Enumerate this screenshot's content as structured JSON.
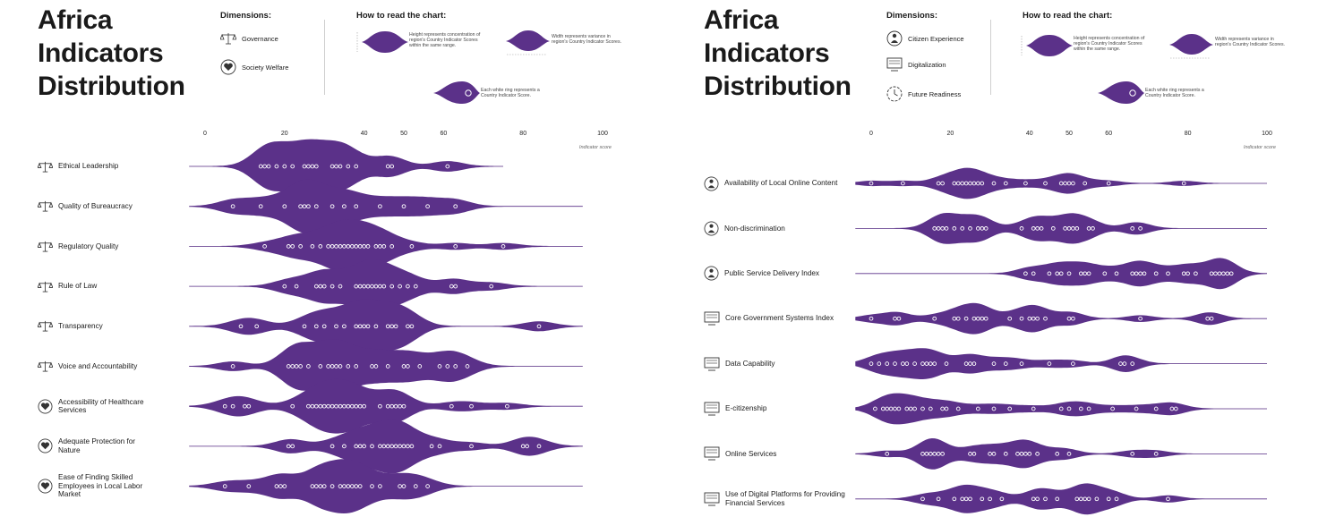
{
  "colors": {
    "violin": "#5b3189",
    "ring": "#ffffff",
    "guide": "#d9d9d9",
    "text": "#1a1a1a"
  },
  "left": {
    "title": "Africa\nIndicators\nDistribution",
    "dimensions_heading": "Dimensions:",
    "dimensions": [
      {
        "label": "Governance",
        "icon": "scales-icon"
      },
      {
        "label": "Society Welfare",
        "icon": "heart-hand-icon"
      }
    ],
    "how_heading": "How to read the chart:",
    "legend": {
      "height_text": "Height represents concentration of region's Country Indicator Scores within the same range.",
      "width_text": "Width represents variance in region's Country Indicator Scores.",
      "ring_text": "Each white ring represents a Country Indicator Score."
    }
  },
  "right": {
    "title": "Africa\nIndicators\nDistribution",
    "dimensions_heading": "Dimensions:",
    "dimensions": [
      {
        "label": "Citizen Experience",
        "icon": "citizen-icon"
      },
      {
        "label": "Digitalization",
        "icon": "monitor-icon"
      },
      {
        "label": "Future Readiness",
        "icon": "clock-icon"
      }
    ],
    "how_heading": "How to read the chart:",
    "legend": {
      "height_text": "Height represents concentration of region's Country Indicator Scores within the same range.",
      "width_text": "Width represents variance in region's Country Indicator Scores.",
      "ring_text": "Each white ring represents a Country Indicator Score."
    }
  },
  "chart_data": [
    {
      "type": "violin",
      "title": "Africa Indicators Distribution",
      "xlabel": "Indicator score",
      "xlim": [
        0,
        100
      ],
      "ticks": [
        0,
        20,
        40,
        50,
        60,
        80,
        100
      ],
      "series": [
        {
          "name": "Ethical Leadership",
          "dimension": "Governance",
          "range": [
            -4,
            75
          ],
          "values": [
            14,
            15,
            16,
            18,
            20,
            22,
            25,
            26,
            27,
            28,
            32,
            33,
            34,
            36,
            38,
            46,
            47,
            61
          ]
        },
        {
          "name": "Quality of Bureaucracy",
          "dimension": "Governance",
          "range": [
            -4,
            95
          ],
          "values": [
            7,
            14,
            20,
            24,
            25,
            26,
            28,
            32,
            35,
            38,
            44,
            50,
            56,
            63
          ]
        },
        {
          "name": "Regulatory Quality",
          "dimension": "Governance",
          "range": [
            -4,
            95
          ],
          "values": [
            15,
            21,
            22,
            24,
            27,
            29,
            31,
            32,
            33,
            34,
            35,
            36,
            37,
            38,
            39,
            40,
            41,
            43,
            44,
            45,
            47,
            52,
            63,
            75
          ]
        },
        {
          "name": "Rule of Law",
          "dimension": "Governance",
          "range": [
            -4,
            95
          ],
          "values": [
            20,
            23,
            28,
            29,
            30,
            32,
            34,
            38,
            39,
            40,
            41,
            42,
            43,
            44,
            45,
            47,
            49,
            51,
            53,
            62,
            63,
            72
          ]
        },
        {
          "name": "Transparency",
          "dimension": "Governance",
          "range": [
            -4,
            95
          ],
          "values": [
            9,
            13,
            25,
            28,
            30,
            33,
            35,
            38,
            39,
            40,
            41,
            43,
            46,
            47,
            48,
            51,
            52,
            84
          ]
        },
        {
          "name": "Voice and Accountability",
          "dimension": "Governance",
          "range": [
            -4,
            95
          ],
          "values": [
            7,
            21,
            22,
            23,
            24,
            26,
            29,
            31,
            32,
            33,
            34,
            36,
            38,
            42,
            43,
            46,
            50,
            51,
            54,
            59,
            61,
            63,
            66
          ]
        },
        {
          "name": "Accessibility of Healthcare Services",
          "dimension": "Society Welfare",
          "range": [
            -4,
            95
          ],
          "values": [
            5,
            7,
            10,
            11,
            22,
            26,
            27,
            28,
            29,
            30,
            31,
            32,
            33,
            34,
            35,
            36,
            37,
            38,
            39,
            40,
            44,
            46,
            47,
            48,
            49,
            50,
            62,
            67,
            76
          ]
        },
        {
          "name": "Adequate Protection for Nature",
          "dimension": "Society Welfare",
          "range": [
            -4,
            95
          ],
          "values": [
            21,
            22,
            32,
            35,
            38,
            39,
            40,
            42,
            44,
            45,
            46,
            47,
            48,
            49,
            50,
            51,
            52,
            57,
            59,
            67,
            80,
            81,
            84
          ]
        },
        {
          "name": "Ease of Finding Skilled Employees in Local Labor Market",
          "dimension": "Society Welfare",
          "range": [
            -4,
            95
          ],
          "values": [
            5,
            11,
            18,
            19,
            20,
            27,
            28,
            29,
            30,
            32,
            34,
            35,
            36,
            37,
            38,
            39,
            42,
            44,
            49,
            50,
            53,
            56
          ]
        }
      ]
    },
    {
      "type": "violin",
      "title": "Africa Indicators Distribution",
      "xlabel": "Indicator score",
      "xlim": [
        0,
        100
      ],
      "ticks": [
        0,
        20,
        40,
        50,
        60,
        80,
        100
      ],
      "series": [
        {
          "name": "Availability of Local Online Content",
          "dimension": "Citizen Experience",
          "range": [
            -4,
            100
          ],
          "values": [
            0,
            8,
            17,
            18,
            21,
            22,
            23,
            24,
            25,
            26,
            27,
            28,
            31,
            34,
            39,
            44,
            48,
            49,
            50,
            51,
            54,
            60,
            79
          ]
        },
        {
          "name": "Non-discrimination",
          "dimension": "Citizen Experience",
          "range": [
            -4,
            100
          ],
          "values": [
            16,
            17,
            18,
            19,
            21,
            23,
            25,
            27,
            28,
            29,
            38,
            41,
            42,
            43,
            46,
            49,
            50,
            51,
            52,
            55,
            56,
            66,
            68
          ]
        },
        {
          "name": "Public Service Delivery Index",
          "dimension": "Citizen Experience",
          "range": [
            -4,
            100
          ],
          "values": [
            39,
            41,
            45,
            47,
            48,
            50,
            53,
            54,
            55,
            59,
            62,
            66,
            67,
            68,
            69,
            72,
            75,
            79,
            80,
            82,
            86,
            87,
            88,
            89,
            90,
            91
          ]
        },
        {
          "name": "Core Government Systems Index",
          "dimension": "Digitalization",
          "range": [
            -4,
            100
          ],
          "values": [
            0,
            6,
            7,
            16,
            21,
            22,
            24,
            26,
            27,
            28,
            29,
            35,
            38,
            40,
            41,
            42,
            44,
            50,
            51,
            68,
            85,
            86
          ]
        },
        {
          "name": "Data Capability",
          "dimension": "Digitalization",
          "range": [
            -4,
            100
          ],
          "values": [
            0,
            2,
            4,
            6,
            8,
            9,
            11,
            13,
            14,
            15,
            16,
            19,
            24,
            25,
            26,
            31,
            34,
            38,
            45,
            51,
            63,
            64,
            66
          ]
        },
        {
          "name": "E-citizenship",
          "dimension": "Digitalization",
          "range": [
            -4,
            100
          ],
          "values": [
            1,
            3,
            4,
            5,
            6,
            7,
            9,
            10,
            11,
            13,
            15,
            18,
            19,
            22,
            27,
            31,
            35,
            41,
            48,
            50,
            53,
            55,
            61,
            67,
            72,
            76,
            77
          ]
        },
        {
          "name": "Online Services",
          "dimension": "Digitalization",
          "range": [
            -4,
            100
          ],
          "values": [
            4,
            13,
            14,
            15,
            16,
            17,
            18,
            25,
            26,
            30,
            31,
            34,
            37,
            38,
            39,
            40,
            42,
            47,
            50,
            66,
            72
          ]
        },
        {
          "name": "Use of Digital Platforms for Providing Financial Services",
          "dimension": "Future Readiness",
          "range": [
            -4,
            100
          ],
          "values": [
            13,
            17,
            21,
            23,
            24,
            25,
            28,
            30,
            33,
            41,
            42,
            44,
            47,
            52,
            53,
            54,
            55,
            57,
            60,
            62,
            75
          ]
        }
      ]
    }
  ]
}
